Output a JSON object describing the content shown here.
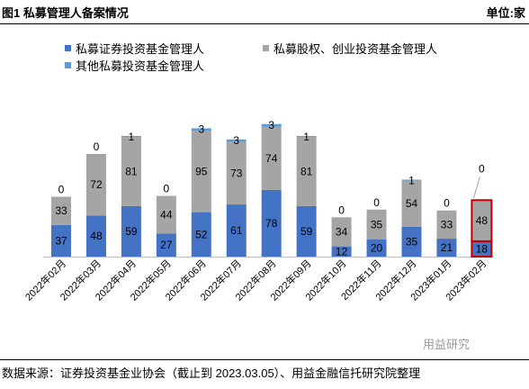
{
  "header": {
    "title": "图1 私募管理人备案情况",
    "unit": "单位:家"
  },
  "footer": {
    "source": "数据来源：证券投资基金业协会（截止到 2023.03.05）、用益金融信托研究院整理",
    "watermark": "用益研究"
  },
  "chart_data": {
    "type": "bar",
    "stacked": true,
    "title": "",
    "xlabel": "",
    "ylabel": "",
    "categories": [
      "2022年02月",
      "2022年03月",
      "2022年04月",
      "2022年05月",
      "2022年06月",
      "2022年07月",
      "2022年08月",
      "2022年09月",
      "2022年10月",
      "2022年11月",
      "2022年12月",
      "2023年01月",
      "2023年02月"
    ],
    "series": [
      {
        "name": "私募证券投资基金管理人",
        "color": "#4472C4",
        "values": [
          37,
          48,
          59,
          27,
          52,
          61,
          78,
          59,
          12,
          20,
          35,
          21,
          18
        ]
      },
      {
        "name": "私募股权、创业投资基金管理人",
        "color": "#A5A5A5",
        "values": [
          33,
          72,
          81,
          44,
          95,
          73,
          74,
          81,
          34,
          35,
          54,
          33,
          48
        ]
      },
      {
        "name": "其他私募投资基金管理人",
        "color": "#5B9BD5",
        "values": [
          0,
          0,
          1,
          0,
          3,
          3,
          3,
          1,
          0,
          0,
          1,
          0,
          0
        ]
      }
    ],
    "highlight_category": "2023年02月",
    "highlight_color": "#C00000",
    "ylim": [
      0,
      160
    ],
    "grid": false,
    "legend": "top-left"
  }
}
